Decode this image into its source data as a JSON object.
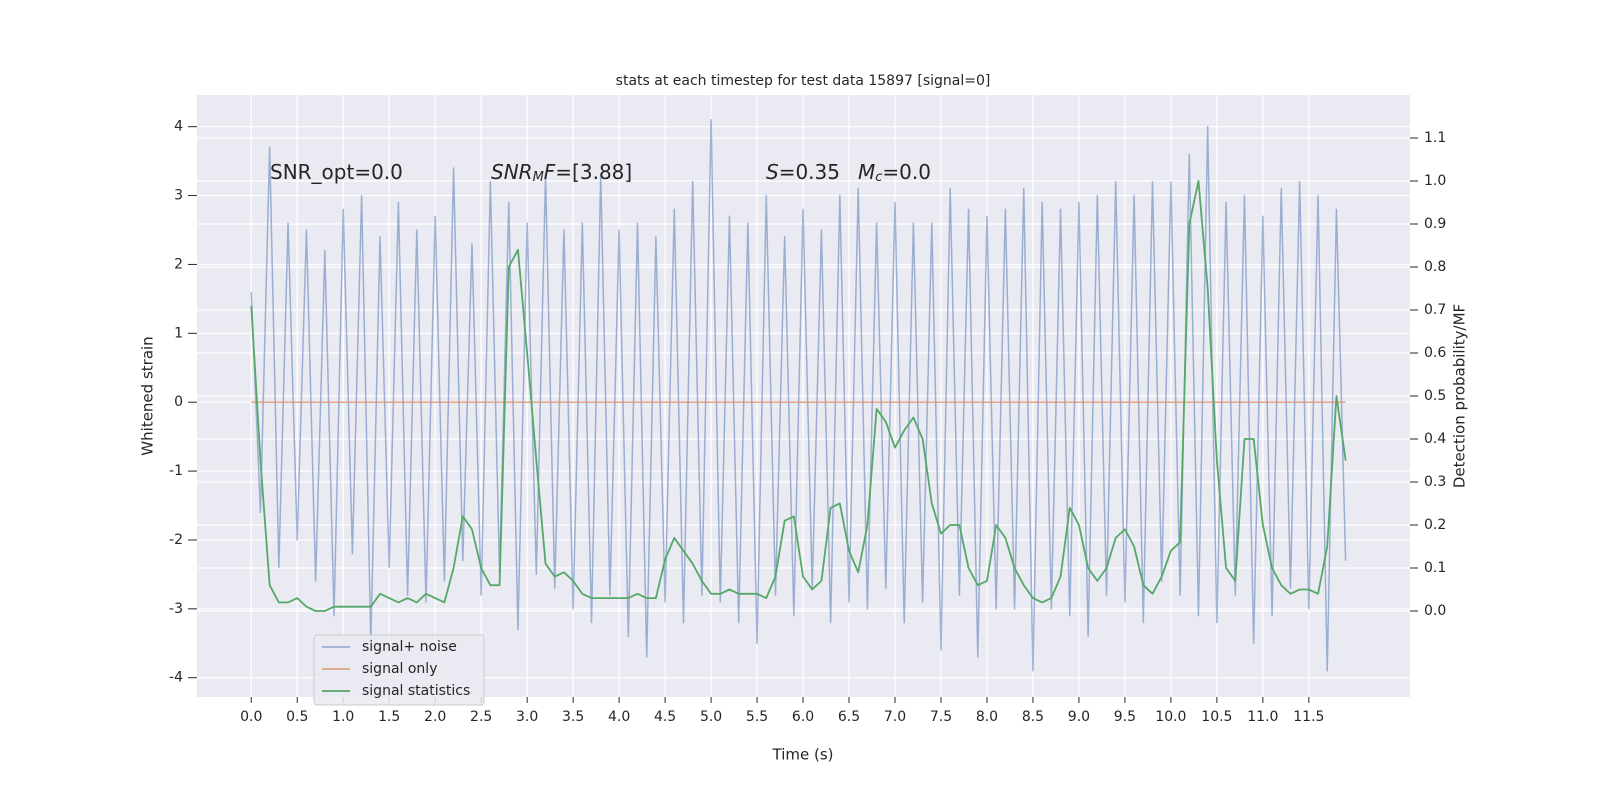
{
  "chart_data": {
    "type": "line",
    "title": "stats at each timestep for test data 15897 [signal=0]",
    "xlabel": "Time (s)",
    "ylabel": "Whitened strain",
    "y2label": "Detection probability/MF",
    "annotations": [
      [
        "SNR_opt=0.0"
      ],
      [
        "SNR",
        "M",
        "F",
        "=[3.88]"
      ],
      [
        "S",
        "=0.35"
      ],
      [
        "M",
        "c",
        "=0.0"
      ]
    ],
    "x": [
      0.0,
      0.1,
      0.2,
      0.3,
      0.4,
      0.5,
      0.6,
      0.7,
      0.8,
      0.9,
      1.0,
      1.1,
      1.2,
      1.3,
      1.4,
      1.5,
      1.6,
      1.7,
      1.8,
      1.9,
      2.0,
      2.1,
      2.2,
      2.3,
      2.4,
      2.5,
      2.6,
      2.7,
      2.8,
      2.9,
      3.0,
      3.1,
      3.2,
      3.3,
      3.4,
      3.5,
      3.6,
      3.7,
      3.8,
      3.9,
      4.0,
      4.1,
      4.2,
      4.3,
      4.4,
      4.5,
      4.6,
      4.7,
      4.8,
      4.9,
      5.0,
      5.1,
      5.2,
      5.3,
      5.4,
      5.5,
      5.6,
      5.7,
      5.8,
      5.9,
      6.0,
      6.1,
      6.2,
      6.3,
      6.4,
      6.5,
      6.6,
      6.7,
      6.8,
      6.9,
      7.0,
      7.1,
      7.2,
      7.3,
      7.4,
      7.5,
      7.6,
      7.7,
      7.8,
      7.9,
      8.0,
      8.1,
      8.2,
      8.3,
      8.4,
      8.5,
      8.6,
      8.7,
      8.8,
      8.9,
      9.0,
      9.1,
      9.2,
      9.3,
      9.4,
      9.5,
      9.6,
      9.7,
      9.8,
      9.9,
      10.0,
      10.1,
      10.2,
      10.3,
      10.4,
      10.5,
      10.6,
      10.7,
      10.8,
      10.9,
      11.0,
      11.1,
      11.2,
      11.3,
      11.4,
      11.5,
      11.6,
      11.7,
      11.8,
      11.9
    ],
    "series": [
      {
        "name": "signal+ noise",
        "color": "#4c72b0",
        "opacity": 0.5,
        "values": [
          1.6,
          -1.6,
          3.7,
          -2.4,
          2.6,
          -2.0,
          2.5,
          -2.6,
          2.2,
          -3.1,
          2.8,
          -2.2,
          3.0,
          -3.5,
          2.4,
          -2.4,
          2.9,
          -2.8,
          2.5,
          -2.9,
          2.7,
          -2.6,
          3.4,
          -2.3,
          2.3,
          -2.8,
          3.2,
          -2.5,
          2.9,
          -3.3,
          2.6,
          -2.5,
          3.3,
          -2.7,
          2.5,
          -3.0,
          2.6,
          -3.2,
          3.3,
          -2.8,
          2.5,
          -3.4,
          2.6,
          -3.7,
          2.4,
          -2.9,
          2.8,
          -3.2,
          3.2,
          -2.8,
          4.1,
          -2.9,
          2.7,
          -3.2,
          2.6,
          -3.5,
          3.0,
          -2.8,
          2.4,
          -3.1,
          2.8,
          -2.7,
          2.5,
          -3.2,
          3.0,
          -2.9,
          3.1,
          -3.0,
          2.6,
          -2.7,
          2.9,
          -3.2,
          2.6,
          -2.9,
          2.6,
          -3.6,
          3.1,
          -2.8,
          2.8,
          -3.7,
          2.7,
          -3.0,
          2.8,
          -3.0,
          3.1,
          -3.9,
          2.9,
          -3.0,
          2.8,
          -3.1,
          2.9,
          -3.4,
          3.0,
          -2.8,
          3.2,
          -2.9,
          3.0,
          -3.2,
          3.2,
          -2.6,
          3.2,
          -2.8,
          3.6,
          -3.1,
          4.0,
          -3.2,
          2.9,
          -2.8,
          3.0,
          -3.5,
          2.7,
          -3.1,
          3.1,
          -2.7,
          3.2,
          -3.0,
          3.0,
          -3.9,
          2.8,
          -2.3
        ]
      },
      {
        "name": "signal only",
        "color": "#dd8452",
        "opacity": 0.7,
        "values": [
          0,
          0,
          0,
          0,
          0,
          0,
          0,
          0,
          0,
          0,
          0,
          0,
          0,
          0,
          0,
          0,
          0,
          0,
          0,
          0,
          0,
          0,
          0,
          0,
          0,
          0,
          0,
          0,
          0,
          0,
          0,
          0,
          0,
          0,
          0,
          0,
          0,
          0,
          0,
          0,
          0,
          0,
          0,
          0,
          0,
          0,
          0,
          0,
          0,
          0,
          0,
          0,
          0,
          0,
          0,
          0,
          0,
          0,
          0,
          0,
          0,
          0,
          0,
          0,
          0,
          0,
          0,
          0,
          0,
          0,
          0,
          0,
          0,
          0,
          0,
          0,
          0,
          0,
          0,
          0,
          0,
          0,
          0,
          0,
          0,
          0,
          0,
          0,
          0,
          0,
          0,
          0,
          0,
          0,
          0,
          0,
          0,
          0,
          0,
          0,
          0,
          0,
          0,
          0,
          0,
          0,
          0,
          0,
          0,
          0,
          0,
          0,
          0,
          0,
          0,
          0,
          0,
          0,
          0,
          0
        ]
      },
      {
        "name": "signal statistics",
        "color": "#55a868",
        "opacity": 1,
        "axis": "y2",
        "values": [
          0.71,
          0.35,
          0.06,
          0.02,
          0.02,
          0.03,
          0.01,
          0.0,
          0.0,
          0.01,
          0.01,
          0.01,
          0.01,
          0.01,
          0.04,
          0.03,
          0.02,
          0.03,
          0.02,
          0.04,
          0.03,
          0.02,
          0.1,
          0.22,
          0.19,
          0.1,
          0.06,
          0.06,
          0.8,
          0.84,
          0.6,
          0.35,
          0.11,
          0.08,
          0.09,
          0.07,
          0.04,
          0.03,
          0.03,
          0.03,
          0.03,
          0.03,
          0.04,
          0.03,
          0.03,
          0.12,
          0.17,
          0.14,
          0.11,
          0.07,
          0.04,
          0.04,
          0.05,
          0.04,
          0.04,
          0.04,
          0.03,
          0.08,
          0.21,
          0.22,
          0.08,
          0.05,
          0.07,
          0.24,
          0.25,
          0.14,
          0.09,
          0.2,
          0.47,
          0.44,
          0.38,
          0.42,
          0.45,
          0.4,
          0.25,
          0.18,
          0.2,
          0.2,
          0.1,
          0.06,
          0.07,
          0.2,
          0.17,
          0.1,
          0.06,
          0.03,
          0.02,
          0.03,
          0.08,
          0.24,
          0.2,
          0.1,
          0.07,
          0.1,
          0.17,
          0.19,
          0.15,
          0.06,
          0.04,
          0.08,
          0.14,
          0.16,
          0.9,
          1.0,
          0.75,
          0.35,
          0.1,
          0.07,
          0.4,
          0.4,
          0.2,
          0.1,
          0.06,
          0.04,
          0.05,
          0.05,
          0.04,
          0.15,
          0.5,
          0.35
        ]
      }
    ],
    "xlim": [
      -0.59,
      12.6
    ],
    "ylim": [
      -4.28,
      4.46
    ],
    "y2lim": [
      -0.2,
      1.2
    ],
    "xticks": [
      {
        "value": 0,
        "label": "0.0"
      },
      0.5,
      {
        "value": 1,
        "label": "1.0"
      },
      1.5,
      {
        "value": 2,
        "label": "2.0"
      },
      2.5,
      {
        "value": 3,
        "label": "3.0"
      },
      3.5,
      {
        "value": 4,
        "label": "4.0"
      },
      4.5,
      {
        "value": 5,
        "label": "5.0"
      },
      5.5,
      {
        "value": 6,
        "label": "6.0"
      },
      6.5,
      {
        "value": 7,
        "label": "7.0"
      },
      7.5,
      {
        "value": 8,
        "label": "8.0"
      },
      8.5,
      {
        "value": 9,
        "label": "9.0"
      },
      9.5,
      {
        "value": 10,
        "label": "10.0"
      },
      10.5,
      {
        "value": 11,
        "label": "11.0"
      },
      11.5
    ],
    "yticks": [
      -4,
      -3,
      -2,
      -1,
      0,
      1,
      2,
      3,
      4
    ],
    "y2ticks": [
      {
        "value": 0,
        "label": "0.0"
      },
      0.1,
      0.2,
      0.3,
      0.4,
      0.5,
      0.6,
      0.7,
      0.8,
      0.9,
      {
        "value": 1,
        "label": "1.0"
      },
      1.1
    ],
    "grid": true,
    "legend": "lower left"
  }
}
